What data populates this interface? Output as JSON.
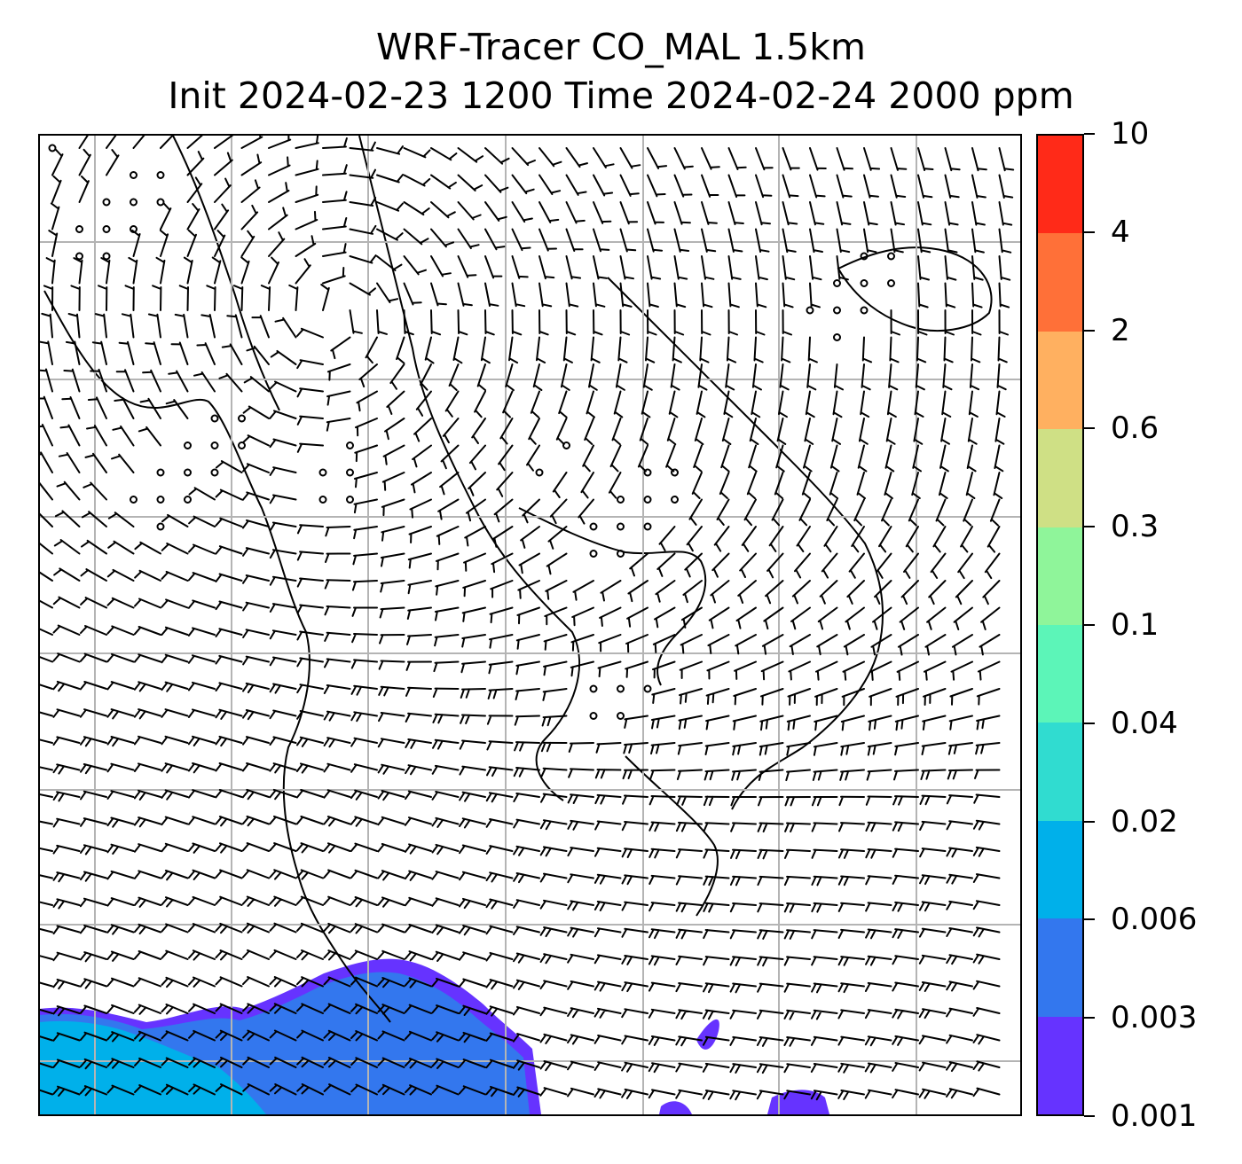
{
  "title_line1": "WRF-Tracer CO_MAL 1.5km",
  "title_line2": "Init 2024-02-23 1200 Time 2024-02-24 2000 ppm",
  "colorbar": {
    "levels": [
      "0.001",
      "0.003",
      "0.006",
      "0.02",
      "0.04",
      "0.1",
      "0.3",
      "0.6",
      "2",
      "4",
      "10"
    ],
    "colors": [
      "#6633ff",
      "#3377ee",
      "#00b0ea",
      "#30dcd0",
      "#5cf5b8",
      "#8ff59a",
      "#cfe085",
      "#ffb060",
      "#ff7038",
      "#ff2a18"
    ]
  },
  "map": {
    "gridlines": true,
    "wind_barbs": true,
    "concentration_color": "#00b0ea"
  }
}
